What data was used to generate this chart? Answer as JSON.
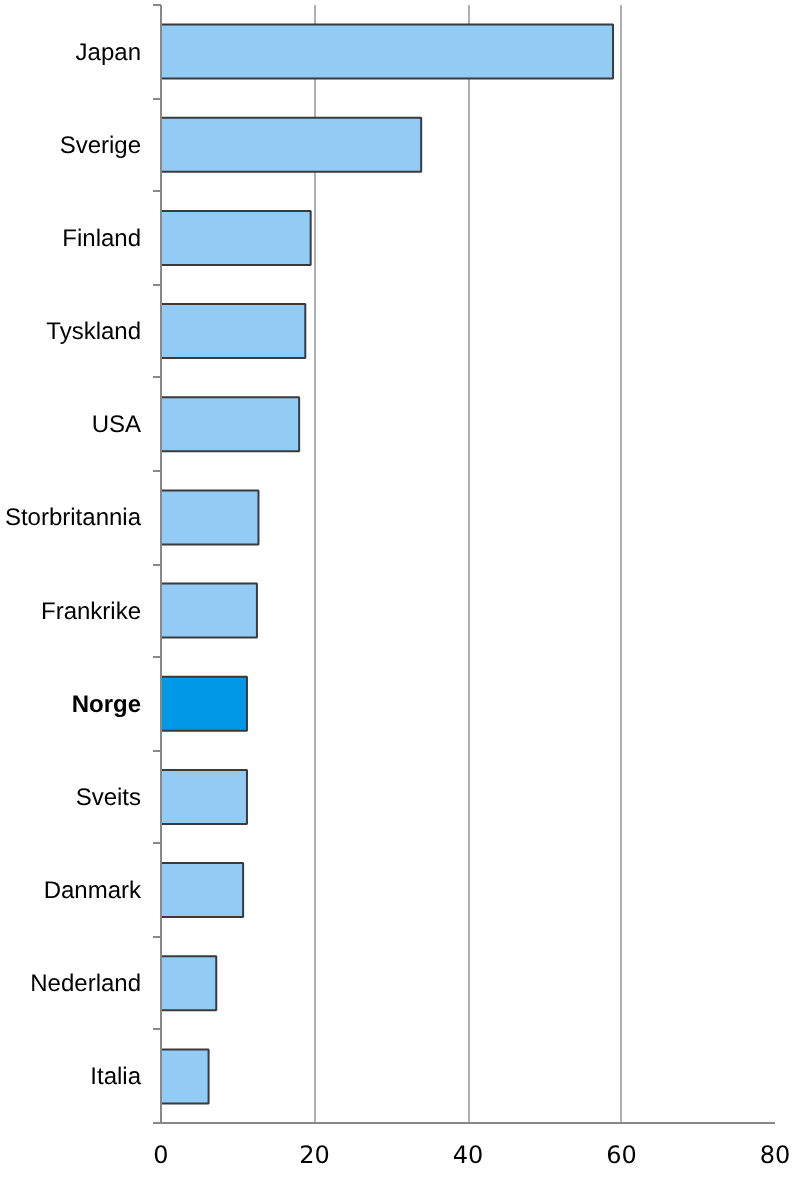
{
  "chart_data": {
    "type": "bar",
    "orientation": "horizontal",
    "categories": [
      "Japan",
      "Sverige",
      "Finland",
      "Tyskland",
      "USA",
      "Storbritannia",
      "Frankrike",
      "Norge",
      "Sveits",
      "Danmark",
      "Nederland",
      "Italia"
    ],
    "values": [
      58.9,
      33.9,
      19.5,
      18.8,
      18.0,
      12.7,
      12.5,
      11.2,
      11.2,
      10.7,
      7.2,
      6.2
    ],
    "colors": [
      "#92cbf3",
      "#92cbf3",
      "#92cbf3",
      "#92cbf3",
      "#92cbf3",
      "#92cbf3",
      "#92cbf3",
      "#0099e6",
      "#92cbf3",
      "#92cbf3",
      "#92cbf3",
      "#92cbf3"
    ],
    "xlim": [
      0,
      80
    ],
    "xticks": [
      0,
      20,
      40,
      60,
      80
    ],
    "grid": "x"
  }
}
